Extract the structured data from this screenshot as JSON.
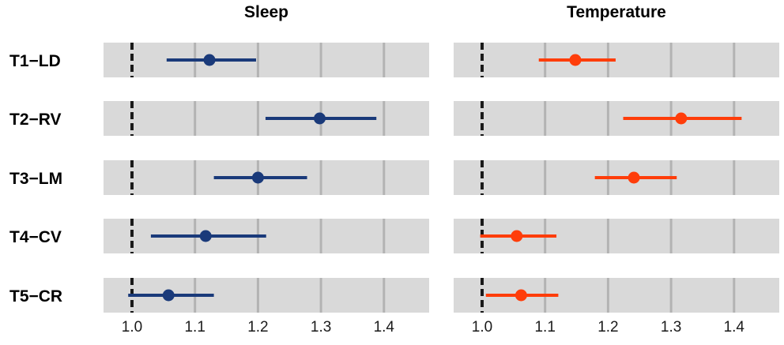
{
  "chart_data": {
    "type": "forest",
    "rows": [
      "T1−LD",
      "T2−RV",
      "T3−LM",
      "T4−CV",
      "T5−CR"
    ],
    "reference_line": 1.0,
    "xlim": [
      0.96,
      1.47
    ],
    "ticks": [
      1.0,
      1.1,
      1.2,
      1.3,
      1.4
    ],
    "tick_labels": [
      "1.0",
      "1.1",
      "1.2",
      "1.3",
      "1.4"
    ],
    "grid": true,
    "panels": [
      {
        "title": "Sleep",
        "color": "#1a3a7a",
        "points": [
          {
            "row": "T1−LD",
            "estimate": 1.123,
            "lower": 1.055,
            "upper": 1.197
          },
          {
            "row": "T2−RV",
            "estimate": 1.298,
            "lower": 1.212,
            "upper": 1.388
          },
          {
            "row": "T3−LM",
            "estimate": 1.2,
            "lower": 1.13,
            "upper": 1.278
          },
          {
            "row": "T4−CV",
            "estimate": 1.117,
            "lower": 1.03,
            "upper": 1.213
          },
          {
            "row": "T5−CR",
            "estimate": 1.058,
            "lower": 0.994,
            "upper": 1.13
          }
        ]
      },
      {
        "title": "Temperature",
        "color": "#ff3d0a",
        "points": [
          {
            "row": "T1−LD",
            "estimate": 1.148,
            "lower": 1.09,
            "upper": 1.212
          },
          {
            "row": "T2−RV",
            "estimate": 1.316,
            "lower": 1.224,
            "upper": 1.412
          },
          {
            "row": "T3−LM",
            "estimate": 1.241,
            "lower": 1.179,
            "upper": 1.309
          },
          {
            "row": "T4−CV",
            "estimate": 1.055,
            "lower": 0.997,
            "upper": 1.118
          },
          {
            "row": "T5−CR",
            "estimate": 1.062,
            "lower": 1.006,
            "upper": 1.121
          }
        ]
      }
    ]
  },
  "colors": {
    "panel_background": "#d9d9d9",
    "gridline": "#b3b3b3",
    "reference_line": "#1a1a1a"
  }
}
